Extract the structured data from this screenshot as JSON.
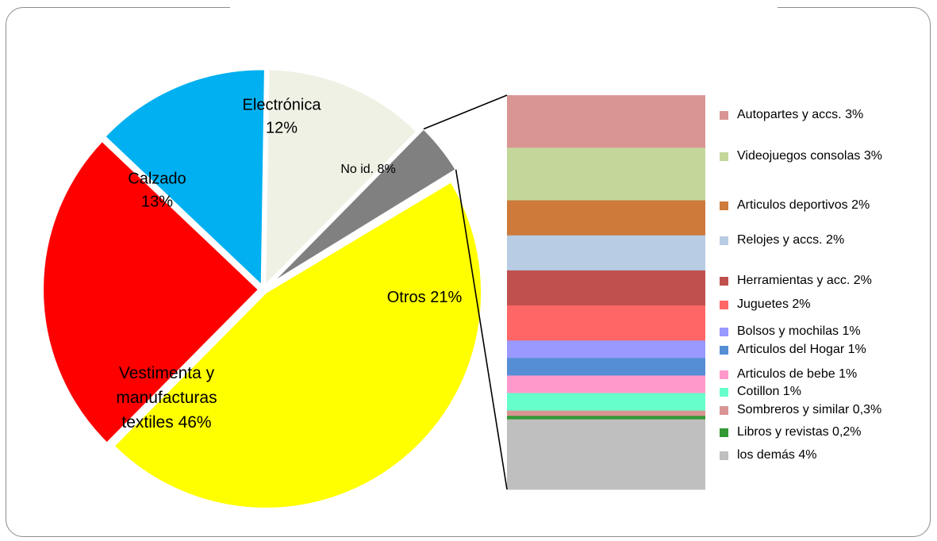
{
  "chart_data": {
    "type": "pie",
    "title": "",
    "pie": {
      "slices": [
        {
          "key": "vestimenta",
          "lines": [
            "Vestimenta y",
            "manufacturas",
            "textiles 46%"
          ],
          "value": 46,
          "color": "#ffff00",
          "exploded": true
        },
        {
          "key": "calzado",
          "lines": [
            "Calzado",
            "13%"
          ],
          "value": 13,
          "color": "#ff0000",
          "exploded": true
        },
        {
          "key": "electronica",
          "lines": [
            "Electrónica",
            "12%"
          ],
          "value": 12,
          "color": "#00b0f0",
          "exploded": true
        },
        {
          "key": "no-id",
          "lines": [
            "No id. 8%"
          ],
          "value": 8,
          "color": "#eef1e4",
          "exploded": true
        },
        {
          "key": "otros",
          "lines": [
            "Otros 21%"
          ],
          "value": 21,
          "color": "#808080",
          "exploded": true
        }
      ]
    },
    "breakdown": {
      "parent": "Otros 21%",
      "items": [
        {
          "key": "autopartes",
          "label": "Autopartes y accs. 3%",
          "value": 3,
          "color": "#d99594"
        },
        {
          "key": "videojuegos",
          "label": "Videojuegos consolas 3%",
          "value": 3,
          "color": "#c4d79b"
        },
        {
          "key": "deportivos",
          "label": "Articulos deportivos 2%",
          "value": 2,
          "color": "#cd7a3a"
        },
        {
          "key": "relojes",
          "label": "Relojes y accs. 2%",
          "value": 2,
          "color": "#b8cce4"
        },
        {
          "key": "herramientas",
          "label": "Herramientas y acc. 2%",
          "value": 2,
          "color": "#c0504d"
        },
        {
          "key": "juguetes",
          "label": "Juguetes 2%",
          "value": 2,
          "color": "#ff6666"
        },
        {
          "key": "bolsos",
          "label": "Bolsos y mochilas 1%",
          "value": 1,
          "color": "#9999ff"
        },
        {
          "key": "hogar",
          "label": "Articulos  del Hogar 1%",
          "value": 1,
          "color": "#558ed5"
        },
        {
          "key": "bebe",
          "label": "Articulos de bebe 1%",
          "value": 1,
          "color": "#ff99cc"
        },
        {
          "key": "cotillon",
          "label": "Cotillon 1%",
          "value": 1,
          "color": "#66ffcc"
        },
        {
          "key": "sombreros",
          "label": "Sombreros y similar 0,3%",
          "value": 0.3,
          "color": "#d99594"
        },
        {
          "key": "libros",
          "label": "Libros y revistas 0,2%",
          "value": 0.2,
          "color": "#339933"
        },
        {
          "key": "demas",
          "label": "los demás 4%",
          "value": 4,
          "color": "#bfbfbf"
        }
      ]
    }
  }
}
